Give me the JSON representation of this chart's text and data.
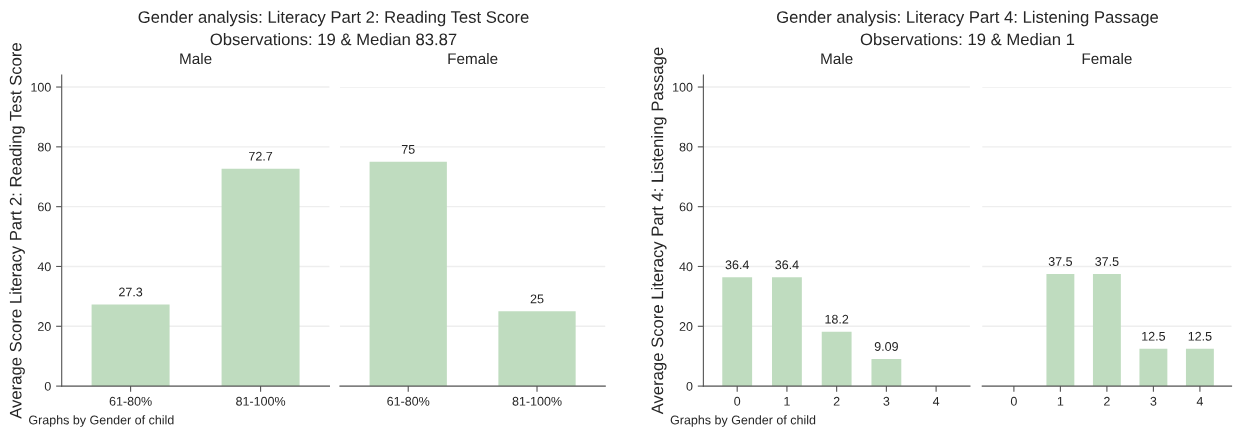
{
  "chart_data": [
    {
      "type": "bar",
      "title": "Male",
      "ylabel": "Average Score Literacy Part 2: Reading Test Score",
      "categories": [
        "61-80%",
        "81-100%"
      ],
      "values": [
        27.3,
        72.7
      ],
      "color": "#bfdcbf",
      "ylim": [
        0,
        104
      ],
      "yticks": [
        0,
        20,
        40,
        60,
        80,
        100
      ],
      "grid": "y",
      "data_labels": true,
      "annotations": [
        "Gender analysis: Literacy Part 2: Reading Test Score",
        "Observations: 19 & Median 83.87",
        "Graphs by Gender of child"
      ]
    },
    {
      "type": "bar",
      "title": "Female",
      "categories": [
        "61-80%",
        "81-100%"
      ],
      "values": [
        75,
        25
      ],
      "color": "#bfdcbf",
      "ylim": [
        0,
        100
      ],
      "yticks": [
        0,
        20,
        40,
        60,
        80,
        100
      ],
      "grid": "y",
      "data_labels": true,
      "tick_labels": "x"
    },
    {
      "type": "bar",
      "title": "Male",
      "ylabel": "Average Score Literacy Part 4: Listening Passage",
      "categories": [
        "0",
        "1",
        "2",
        "3",
        "4"
      ],
      "values": [
        36.4,
        36.4,
        18.2,
        9.09,
        null
      ],
      "color": "#bfdcbf",
      "ylim": [
        0,
        104
      ],
      "yticks": [
        0,
        20,
        40,
        60,
        80,
        100
      ],
      "grid": "y",
      "data_labels": true,
      "annotations": [
        "Gender analysis: Literacy Part 4: Listening Passage",
        "Observations: 19 & Median 1",
        "Graphs by Gender of child"
      ]
    },
    {
      "type": "bar",
      "title": "Female",
      "categories": [
        "0",
        "1",
        "2",
        "3",
        "4"
      ],
      "values": [
        null,
        37.5,
        37.5,
        12.5,
        12.5
      ],
      "color": "#bfdcbf",
      "ylim": [
        0,
        100
      ],
      "yticks": [
        0,
        20,
        40,
        60,
        80,
        100
      ],
      "grid": "y",
      "data_labels": true,
      "tick_labels": "x"
    }
  ]
}
